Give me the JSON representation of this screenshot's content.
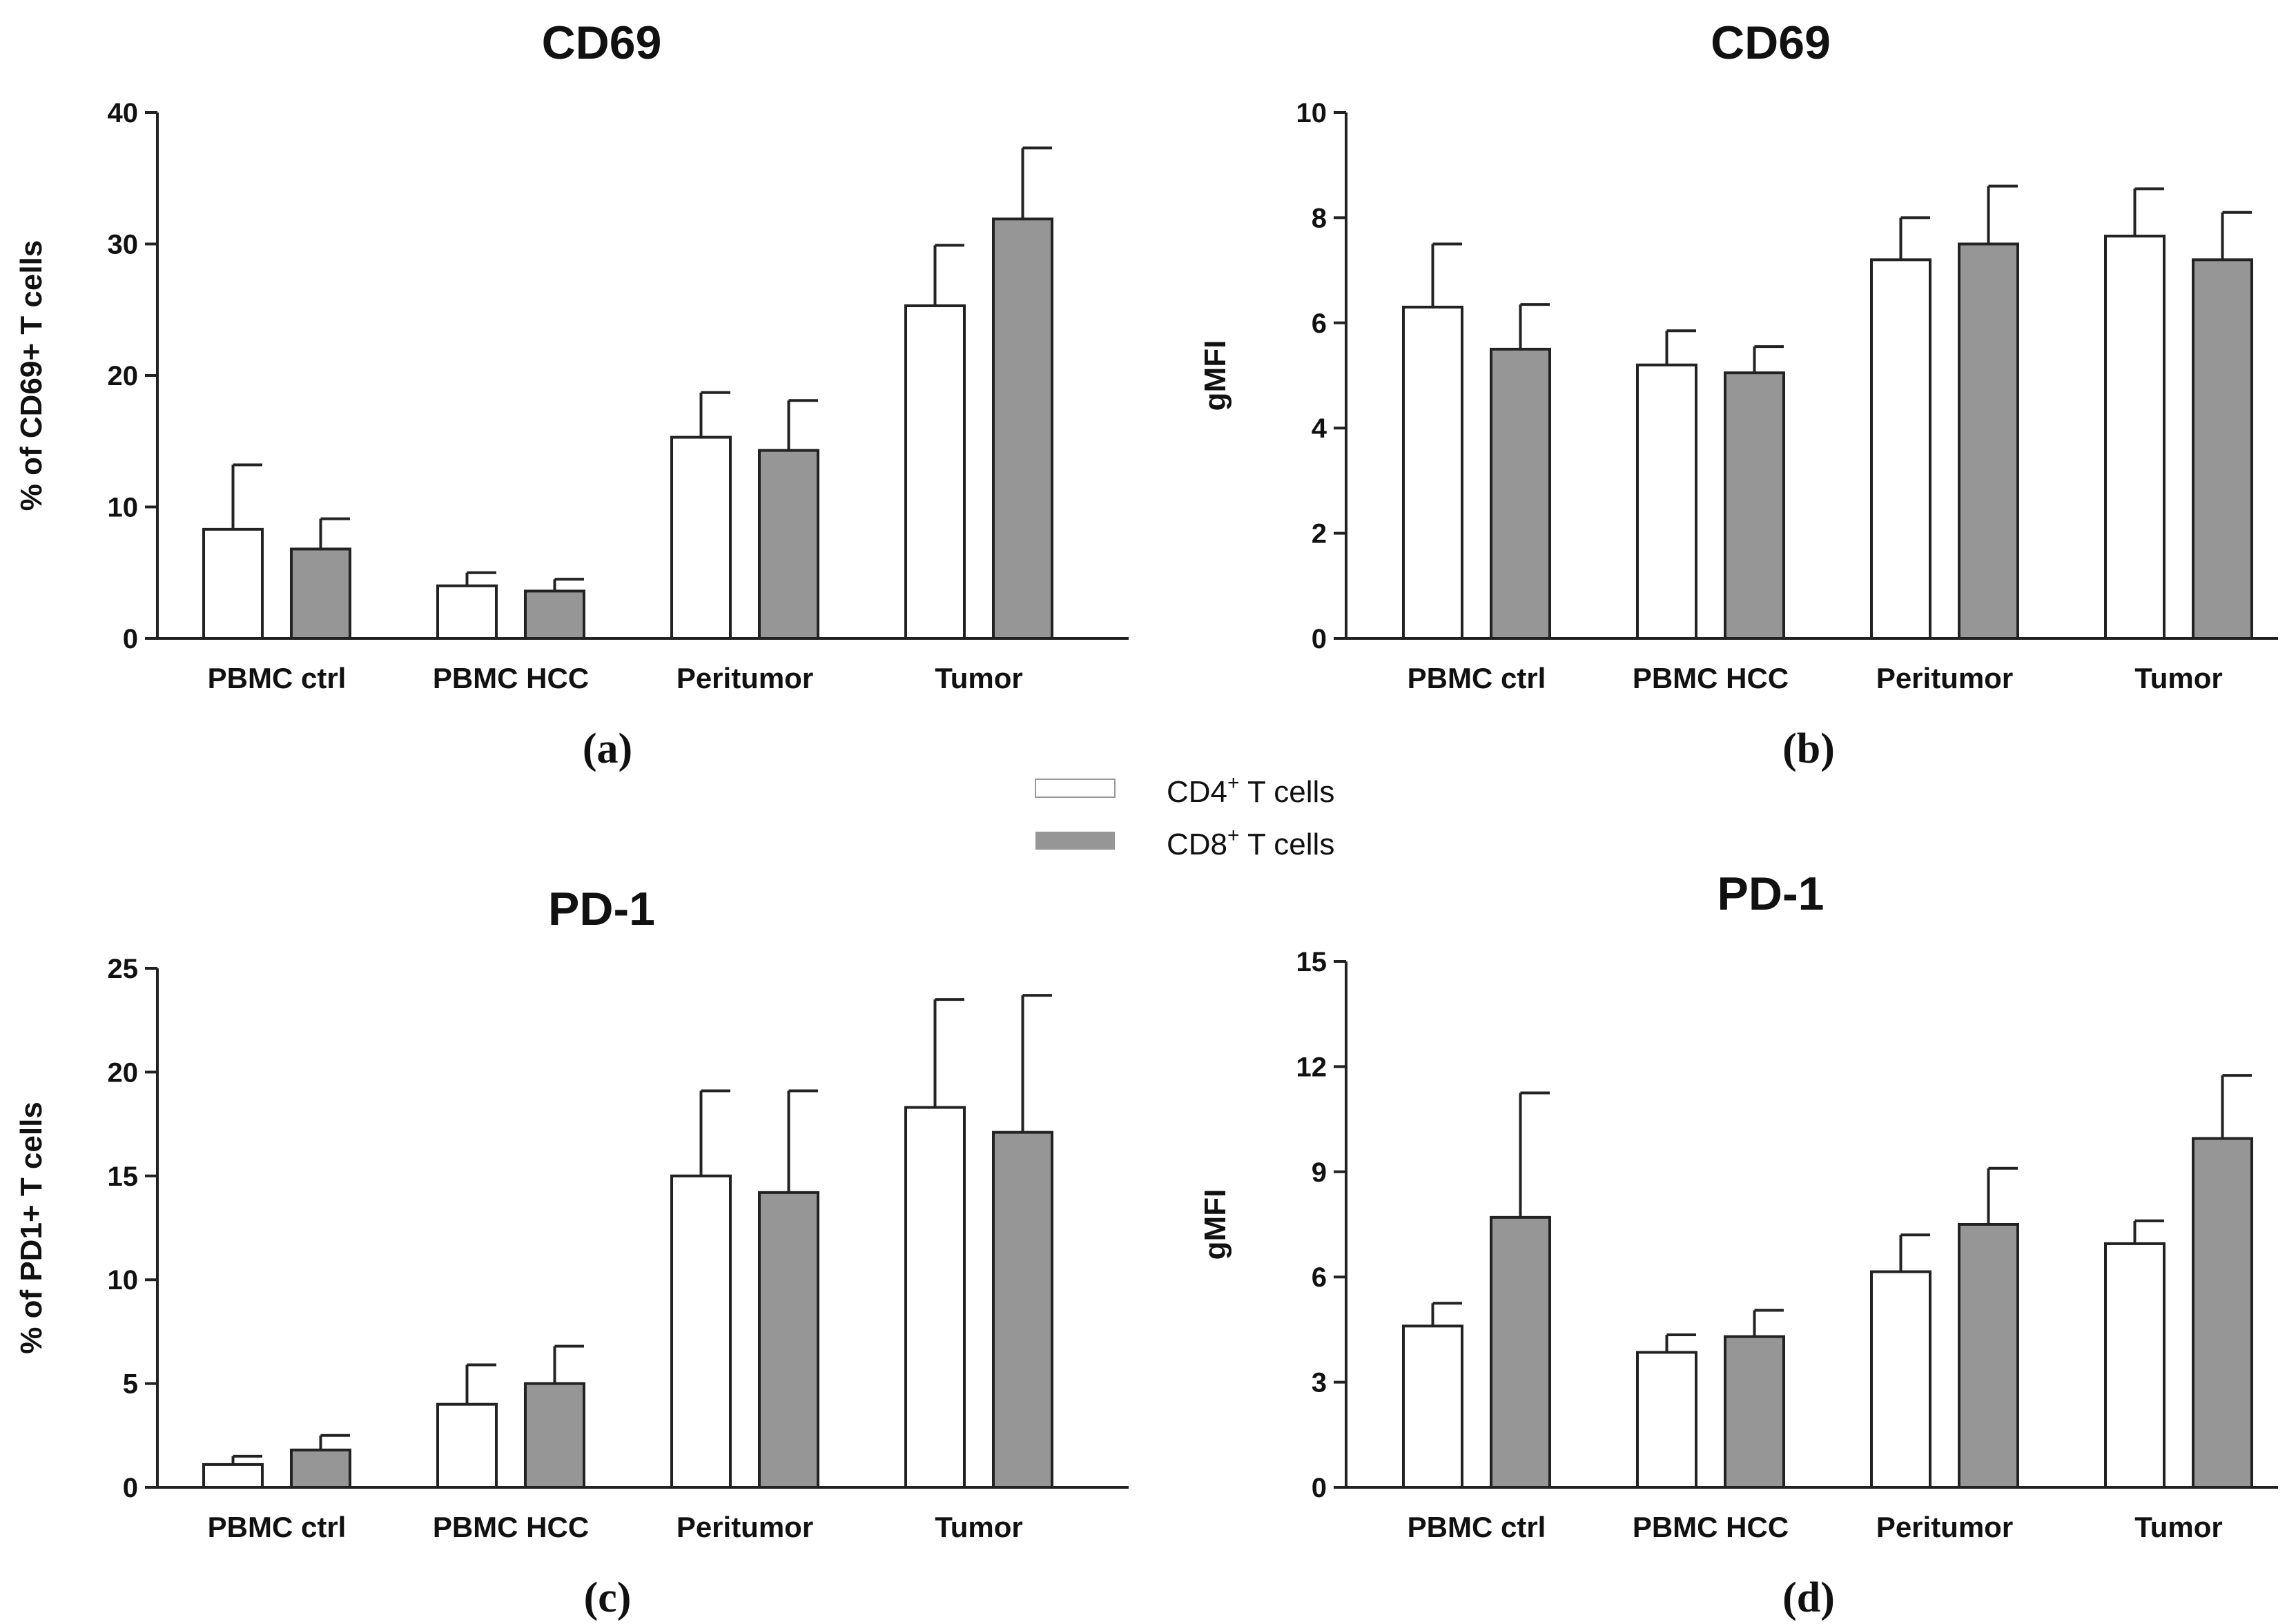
{
  "legend": {
    "cd4": {
      "label": "CD4",
      "sup": "+",
      "rest": " T cells",
      "color": "#ffffff"
    },
    "cd8": {
      "label": "CD8",
      "sup": "+",
      "rest": " T cells",
      "color": "#969696"
    }
  },
  "chart_data": [
    {
      "type": "bar",
      "panel_label": "(a)",
      "title": "CD69",
      "ylabel": "% of CD69+ T cells",
      "ylim": [
        0,
        40
      ],
      "yticks": [
        0,
        10,
        20,
        30,
        40
      ],
      "categories": [
        "PBMC ctrl",
        "PBMC HCC",
        "Peritumor",
        "Tumor"
      ],
      "series": [
        {
          "name": "CD4+ T cells",
          "values": [
            8.3,
            4.0,
            15.3,
            25.3
          ],
          "errors": [
            4.9,
            1.0,
            3.4,
            4.6
          ]
        },
        {
          "name": "CD8+ T cells",
          "values": [
            6.8,
            3.6,
            14.3,
            31.9
          ],
          "errors": [
            2.3,
            0.9,
            3.8,
            5.4
          ]
        }
      ]
    },
    {
      "type": "bar",
      "panel_label": "(b)",
      "title": "CD69",
      "ylabel": "gMFI",
      "ylim": [
        0,
        10
      ],
      "yticks": [
        0,
        2,
        4,
        6,
        8,
        10
      ],
      "categories": [
        "PBMC ctrl",
        "PBMC HCC",
        "Peritumor",
        "Tumor"
      ],
      "series": [
        {
          "name": "CD4+ T cells",
          "values": [
            6.3,
            5.2,
            7.2,
            7.65
          ],
          "errors": [
            1.2,
            0.65,
            0.8,
            0.9
          ]
        },
        {
          "name": "CD8+ T cells",
          "values": [
            5.5,
            5.05,
            7.5,
            7.2
          ],
          "errors": [
            0.85,
            0.5,
            1.1,
            0.9
          ]
        }
      ]
    },
    {
      "type": "bar",
      "panel_label": "(c)",
      "title": "PD-1",
      "ylabel": "% of PD1+ T cells",
      "ylim": [
        0,
        25
      ],
      "yticks": [
        0,
        5,
        10,
        15,
        20,
        25
      ],
      "categories": [
        "PBMC ctrl",
        "PBMC HCC",
        "Peritumor",
        "Tumor"
      ],
      "series": [
        {
          "name": "CD4+ T cells",
          "values": [
            1.1,
            4.0,
            15.0,
            18.3
          ],
          "errors": [
            0.4,
            1.9,
            4.1,
            5.2
          ]
        },
        {
          "name": "CD8+ T cells",
          "values": [
            1.8,
            5.0,
            14.2,
            17.1
          ],
          "errors": [
            0.7,
            1.8,
            4.9,
            6.6
          ]
        }
      ]
    },
    {
      "type": "bar",
      "panel_label": "(d)",
      "title": "PD-1",
      "ylabel": "gMFI",
      "ylim": [
        0,
        15
      ],
      "yticks": [
        0,
        3,
        6,
        9,
        12,
        15
      ],
      "categories": [
        "PBMC ctrl",
        "PBMC HCC",
        "Peritumor",
        "Tumor"
      ],
      "series": [
        {
          "name": "CD4+ T cells",
          "values": [
            4.6,
            3.85,
            6.15,
            6.95
          ],
          "errors": [
            0.65,
            0.5,
            1.05,
            0.65
          ]
        },
        {
          "name": "CD8+ T cells",
          "values": [
            7.7,
            4.3,
            7.5,
            9.95
          ],
          "errors": [
            3.55,
            0.75,
            1.6,
            1.8
          ]
        }
      ]
    }
  ]
}
